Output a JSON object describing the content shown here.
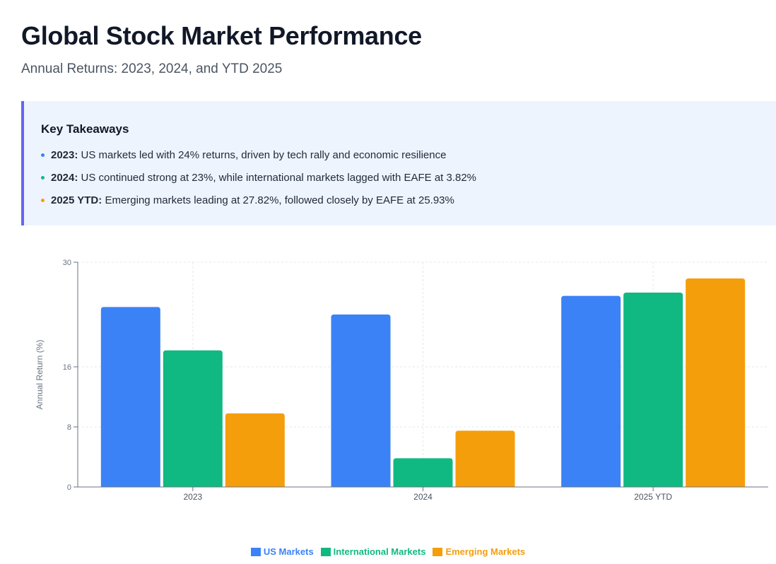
{
  "header": {
    "title": "Global Stock Market Performance",
    "subtitle": "Annual Returns: 2023, 2024, and YTD 2025"
  },
  "takeaways": {
    "heading": "Key Takeaways",
    "items": [
      {
        "label": "2023:",
        "text": "US markets led with 24% returns, driven by tech rally and economic resilience",
        "color": "#3b82f6"
      },
      {
        "label": "2024:",
        "text": "US continued strong at 23%, while international markets lagged with EAFE at 3.82%",
        "color": "#10b981"
      },
      {
        "label": "2025 YTD:",
        "text": "Emerging markets leading at 27.82%, followed closely by EAFE at 25.93%",
        "color": "#f59e0b"
      }
    ]
  },
  "chart_data": {
    "type": "bar",
    "categories": [
      "2023",
      "2024",
      "2025 YTD"
    ],
    "series": [
      {
        "name": "US Markets",
        "color": "#3b82f6",
        "values": [
          24.0,
          23.0,
          25.5
        ]
      },
      {
        "name": "International Markets",
        "color": "#10b981",
        "values": [
          18.2,
          3.82,
          25.93
        ]
      },
      {
        "name": "Emerging Markets",
        "color": "#f59e0b",
        "values": [
          9.8,
          7.5,
          27.82
        ]
      }
    ],
    "ylabel": "Annual Return (%)",
    "xlabel": "",
    "y_ticks": [
      0,
      8,
      16,
      30
    ],
    "ylim": [
      0,
      30
    ],
    "grid": true,
    "legend": "bottom-center"
  }
}
